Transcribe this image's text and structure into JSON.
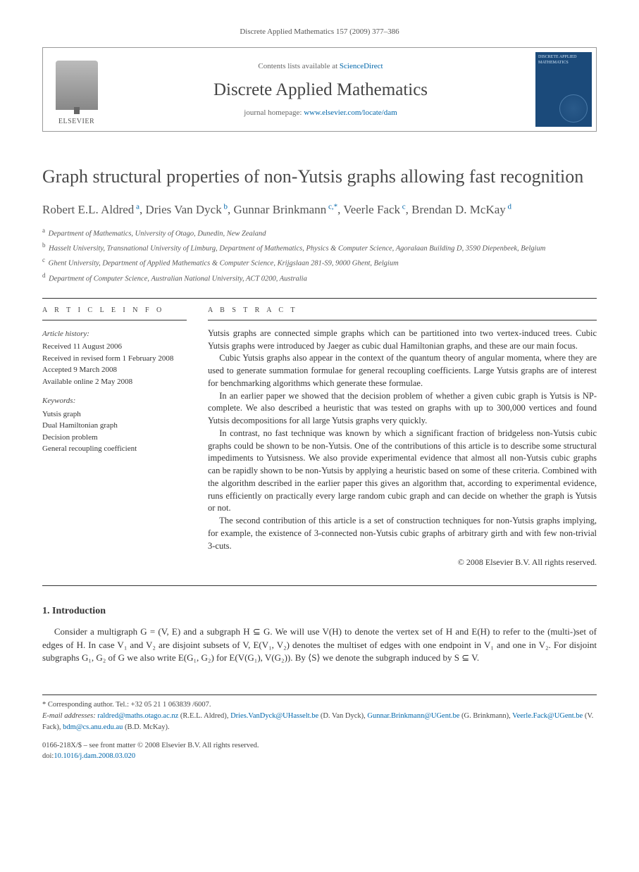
{
  "header": {
    "citation": "Discrete Applied Mathematics 157 (2009) 377–386"
  },
  "banner": {
    "publisher_label": "ELSEVIER",
    "contents_prefix": "Contents lists available at ",
    "contents_link": "ScienceDirect",
    "journal_name": "Discrete Applied Mathematics",
    "homepage_prefix": "journal homepage: ",
    "homepage_link": "www.elsevier.com/locate/dam",
    "cover_text": "DISCRETE APPLIED MATHEMATICS"
  },
  "article": {
    "title": "Graph structural properties of non-Yutsis graphs allowing fast recognition",
    "authors_html": "Robert E.L. Aldred",
    "authors": [
      {
        "name": "Robert E.L. Aldred",
        "sup": "a"
      },
      {
        "name": "Dries Van Dyck",
        "sup": "b"
      },
      {
        "name": "Gunnar Brinkmann",
        "sup": "c,*"
      },
      {
        "name": "Veerle Fack",
        "sup": "c"
      },
      {
        "name": "Brendan D. McKay",
        "sup": "d"
      }
    ],
    "affiliations": [
      {
        "sup": "a",
        "text": "Department of Mathematics, University of Otago, Dunedin, New Zealand"
      },
      {
        "sup": "b",
        "text": "Hasselt University, Transnational University of Limburg, Department of Mathematics, Physics & Computer Science, Agoralaan Building D, 3590 Diepenbeek, Belgium"
      },
      {
        "sup": "c",
        "text": "Ghent University, Department of Applied Mathematics & Computer Science, Krijgslaan 281-S9, 9000 Ghent, Belgium"
      },
      {
        "sup": "d",
        "text": "Department of Computer Science, Australian National University, ACT 0200, Australia"
      }
    ]
  },
  "info": {
    "label": "A R T I C L E   I N F O",
    "history_label": "Article history:",
    "history": [
      "Received 11 August 2006",
      "Received in revised form 1 February 2008",
      "Accepted 9 March 2008",
      "Available online 2 May 2008"
    ],
    "keywords_label": "Keywords:",
    "keywords": [
      "Yutsis graph",
      "Dual Hamiltonian graph",
      "Decision problem",
      "General recoupling coefficient"
    ]
  },
  "abstract": {
    "label": "A B S T R A C T",
    "paragraphs": [
      "Yutsis graphs are connected simple graphs which can be partitioned into two vertex-induced trees. Cubic Yutsis graphs were introduced by Jaeger as cubic dual Hamiltonian graphs, and these are our main focus.",
      "Cubic Yutsis graphs also appear in the context of the quantum theory of angular momenta, where they are used to generate summation formulae for general recoupling coefficients. Large Yutsis graphs are of interest for benchmarking algorithms which generate these formulae.",
      "In an earlier paper we showed that the decision problem of whether a given cubic graph is Yutsis is NP-complete. We also described a heuristic that was tested on graphs with up to 300,000 vertices and found Yutsis decompositions for all large Yutsis graphs very quickly.",
      "In contrast, no fast technique was known by which a significant fraction of bridgeless non-Yutsis cubic graphs could be shown to be non-Yutsis. One of the contributions of this article is to describe some structural impediments to Yutsisness. We also provide experimental evidence that almost all non-Yutsis cubic graphs can be rapidly shown to be non-Yutsis by applying a heuristic based on some of these criteria. Combined with the algorithm described in the earlier paper this gives an algorithm that, according to experimental evidence, runs efficiently on practically every large random cubic graph and can decide on whether the graph is Yutsis or not.",
      "The second contribution of this article is a set of construction techniques for non-Yutsis graphs implying, for example, the existence of 3-connected non-Yutsis cubic graphs of arbitrary girth and with few non-trivial 3-cuts."
    ],
    "copyright": "© 2008 Elsevier B.V. All rights reserved."
  },
  "sections": {
    "intro_heading": "1.  Introduction",
    "intro_para": "Consider a multigraph G = (V, E) and a subgraph H ⊆ G. We will use V(H) to denote the vertex set of H and E(H) to refer to the (multi-)set of edges of H. In case V₁ and V₂ are disjoint subsets of V, E(V₁, V₂) denotes the multiset of edges with one endpoint in V₁ and one in V₂. For disjoint subgraphs G₁, G₂ of G we also write E(G₁, G₂) for E(V(G₁), V(G₂)). By ⟨S⟩ we denote the subgraph induced by S ⊆ V."
  },
  "footnotes": {
    "corr_marker": "*",
    "corr_text": "Corresponding author. Tel.: +32 05 21 1 063839 /6007.",
    "email_label": "E-mail addresses:",
    "emails": [
      {
        "addr": "raldred@maths.otago.ac.nz",
        "who": "(R.E.L. Aldred)"
      },
      {
        "addr": "Dries.VanDyck@UHasselt.be",
        "who": "(D. Van Dyck)"
      },
      {
        "addr": "Gunnar.Brinkmann@UGent.be",
        "who": "(G. Brinkmann)"
      },
      {
        "addr": "Veerle.Fack@UGent.be",
        "who": "(V. Fack)"
      },
      {
        "addr": "bdm@cs.anu.edu.au",
        "who": "(B.D. McKay)"
      }
    ]
  },
  "footer": {
    "issn_line": "0166-218X/$ – see front matter © 2008 Elsevier B.V. All rights reserved.",
    "doi_label": "doi:",
    "doi": "10.1016/j.dam.2008.03.020"
  },
  "colors": {
    "link": "#0066aa",
    "text": "#333333",
    "muted": "#555555",
    "rule": "#333333",
    "cover_bg": "#1b4a7a"
  }
}
